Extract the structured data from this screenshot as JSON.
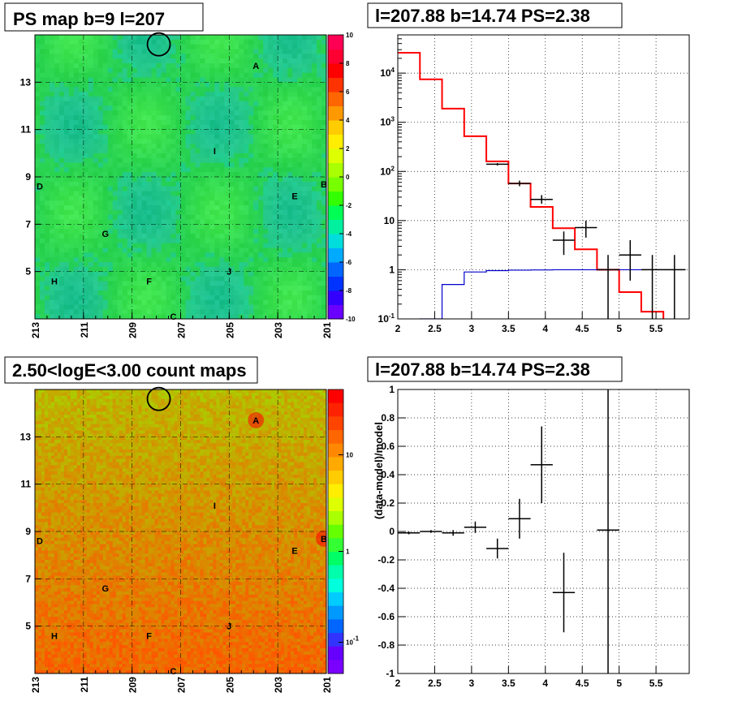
{
  "chart_data": [
    {
      "type": "heatmap",
      "title": "PS map b=9 l=207",
      "x_range": [
        213,
        201
      ],
      "y_range": [
        3,
        15
      ],
      "x_ticks": [
        "213",
        "211",
        "209",
        "207",
        "205",
        "203",
        "201"
      ],
      "y_ticks": [
        "5",
        "7",
        "9",
        "11",
        "13"
      ],
      "colorbar": {
        "ticks": [
          "10",
          "8",
          "6",
          "4",
          "2",
          "0",
          "-2",
          "-4",
          "-6",
          "-8",
          "-10"
        ],
        "range": [
          -10,
          10
        ]
      },
      "sources": [
        {
          "label": "A",
          "l": 203.9,
          "b": 13.7
        },
        {
          "label": "B",
          "l": 201.1,
          "b": 8.7
        },
        {
          "label": "C",
          "l": 207.3,
          "b": 3.1
        },
        {
          "label": "D",
          "l": 212.8,
          "b": 8.6
        },
        {
          "label": "E",
          "l": 202.3,
          "b": 8.2
        },
        {
          "label": "F",
          "l": 208.3,
          "b": 4.6
        },
        {
          "label": "G",
          "l": 210.1,
          "b": 6.6
        },
        {
          "label": "H",
          "l": 212.2,
          "b": 4.6
        },
        {
          "label": "I",
          "l": 205.6,
          "b": 10.1
        },
        {
          "label": "J",
          "l": 205.0,
          "b": 5.0
        }
      ],
      "circle": {
        "l": 207.9,
        "b": 14.6
      }
    },
    {
      "type": "line",
      "title": "l=207.88 b=14.74 PS=2.38",
      "x_ticks": [
        "2",
        "2.5",
        "3",
        "3.5",
        "4",
        "4.5",
        "5",
        "5.5"
      ],
      "y_ticks": [
        "10^-1",
        "1",
        "10",
        "10^2",
        "10^3",
        "10^4"
      ],
      "x_range": [
        2,
        5.95
      ],
      "y_range": [
        0.1,
        60000
      ],
      "y_scale": "log",
      "series": [
        {
          "kind": "model_red",
          "color": "#ff0000",
          "bins": [
            2.0,
            2.3,
            2.6,
            2.9,
            3.2,
            3.5,
            3.8,
            4.1,
            4.4,
            4.7,
            5.0,
            5.3,
            5.6,
            5.9
          ],
          "values": [
            26000,
            7500,
            1900,
            520,
            160,
            57,
            19,
            7,
            2.6,
            1.0,
            0.35,
            0.14,
            0.06
          ]
        },
        {
          "kind": "model_blue",
          "color": "#0000cc",
          "bins": [
            2.0,
            2.3,
            2.6,
            2.9,
            3.2,
            3.5,
            3.8,
            4.1,
            4.4,
            4.7,
            5.0,
            5.3,
            5.6,
            5.9
          ],
          "values": [
            0.02,
            0.1,
            0.5,
            0.9,
            0.96,
            0.98,
            0.99,
            1.0,
            1.0,
            1.0,
            1.0,
            1.0,
            1.0
          ]
        },
        {
          "kind": "data",
          "color": "#000000",
          "points": [
            {
              "x": 3.35,
              "y": 140,
              "xerr": 0.15,
              "ylo": 132,
              "yhi": 148
            },
            {
              "x": 3.65,
              "y": 57,
              "xerr": 0.15,
              "ylo": 50,
              "yhi": 65
            },
            {
              "x": 3.95,
              "y": 27,
              "xerr": 0.15,
              "ylo": 22,
              "yhi": 33
            },
            {
              "x": 4.25,
              "y": 4,
              "xerr": 0.15,
              "ylo": 2,
              "yhi": 6
            },
            {
              "x": 4.55,
              "y": 7.2,
              "xerr": 0.15,
              "ylo": 4.5,
              "yhi": 10
            },
            {
              "x": 5.15,
              "y": 2,
              "xerr": 0.15,
              "ylo": 0.6,
              "yhi": 4
            },
            {
              "x": 5.45,
              "y": 1,
              "xerr": 0.15,
              "ylo": 0.1,
              "yhi": 2
            },
            {
              "x": 5.75,
              "y": 1,
              "xerr": 0.15,
              "ylo": 0.1,
              "yhi": 2
            },
            {
              "x": 4.85,
              "y": 1,
              "xerr": 0.15,
              "ylo": 0.1,
              "yhi": 2
            }
          ]
        }
      ]
    },
    {
      "type": "heatmap",
      "title": "2.50<logE<3.00 count maps",
      "x_range": [
        213,
        201
      ],
      "y_range": [
        3,
        15
      ],
      "x_ticks": [
        "213",
        "211",
        "209",
        "207",
        "205",
        "203",
        "201"
      ],
      "y_ticks": [
        "5",
        "7",
        "9",
        "11",
        "13"
      ],
      "colorbar": {
        "ticks": [
          "10",
          "1",
          "10^-1"
        ],
        "scale": "log"
      },
      "sources": [
        {
          "label": "A",
          "l": 203.9,
          "b": 13.7
        },
        {
          "label": "B",
          "l": 201.1,
          "b": 8.7
        },
        {
          "label": "C",
          "l": 207.3,
          "b": 3.1
        },
        {
          "label": "D",
          "l": 212.8,
          "b": 8.6
        },
        {
          "label": "E",
          "l": 202.3,
          "b": 8.2
        },
        {
          "label": "F",
          "l": 208.3,
          "b": 4.6
        },
        {
          "label": "G",
          "l": 210.1,
          "b": 6.6
        },
        {
          "label": "H",
          "l": 212.2,
          "b": 4.6
        },
        {
          "label": "I",
          "l": 205.6,
          "b": 10.1
        },
        {
          "label": "J",
          "l": 205.0,
          "b": 5.0
        }
      ],
      "circle": {
        "l": 207.9,
        "b": 14.6
      }
    },
    {
      "type": "scatter",
      "title": "l=207.88 b=14.74 PS=2.38",
      "ylabel": "(data-model)/model",
      "x_ticks": [
        "2",
        "2.5",
        "3",
        "3.5",
        "4",
        "4.5",
        "5",
        "5.5"
      ],
      "y_ticks": [
        "1",
        "0.8",
        "0.6",
        "0.4",
        "0.2",
        "0",
        "-0.2",
        "-0.4",
        "-0.6",
        "-0.8",
        "-1"
      ],
      "x_range": [
        2,
        5.95
      ],
      "y_range": [
        -1,
        1
      ],
      "points": [
        {
          "x": 2.15,
          "y": -0.01,
          "xerr": 0.15,
          "yerr": 0.01
        },
        {
          "x": 2.45,
          "y": 0.0,
          "xerr": 0.15,
          "yerr": 0.01
        },
        {
          "x": 2.75,
          "y": -0.01,
          "xerr": 0.15,
          "yerr": 0.02
        },
        {
          "x": 3.05,
          "y": 0.03,
          "xerr": 0.15,
          "yerr": 0.04
        },
        {
          "x": 3.35,
          "y": -0.12,
          "xerr": 0.15,
          "yerr": 0.07
        },
        {
          "x": 3.65,
          "y": 0.09,
          "xerr": 0.15,
          "yerr": 0.14
        },
        {
          "x": 3.95,
          "y": 0.47,
          "xerr": 0.15,
          "yerr": 0.27
        },
        {
          "x": 4.25,
          "y": -0.43,
          "xerr": 0.15,
          "yerr": 0.28
        },
        {
          "x": 4.85,
          "y": 0.01,
          "xerr": 0.15,
          "yerr": 1.2
        }
      ]
    }
  ]
}
